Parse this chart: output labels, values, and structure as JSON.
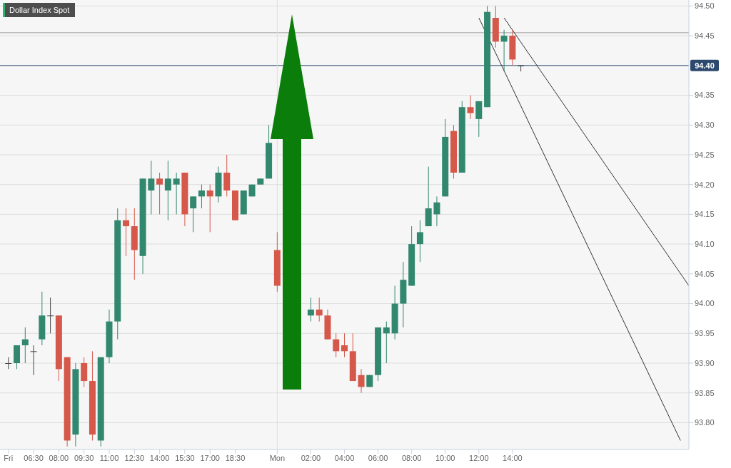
{
  "chart_data": {
    "type": "candlestick",
    "title": "Dollar Index Spot",
    "categories": [
      "Fri",
      null,
      null,
      "06:30",
      null,
      null,
      "08:00",
      null,
      null,
      "09:30",
      null,
      null,
      "11:00",
      null,
      null,
      "12:30",
      null,
      null,
      "14:00",
      null,
      null,
      "15:30",
      null,
      null,
      "17:00",
      null,
      null,
      "18:30",
      null,
      null,
      null,
      null,
      "Mon",
      null,
      null,
      null,
      "02:00",
      null,
      null,
      null,
      "04:00",
      null,
      null,
      null,
      "06:00",
      null,
      null,
      null,
      "08:00",
      null,
      null,
      null,
      "10:00",
      null,
      null,
      null,
      "12:00",
      null,
      null,
      null,
      "14:00",
      null,
      null,
      null,
      null,
      null,
      null,
      null,
      null,
      null,
      null,
      null,
      null,
      null,
      null,
      null,
      null,
      null,
      null,
      null,
      null,
      null
    ],
    "ohlc": [
      [
        93.9,
        93.91,
        93.89,
        93.9
      ],
      [
        93.9,
        93.93,
        93.89,
        93.93
      ],
      [
        93.93,
        93.96,
        93.9,
        93.94
      ],
      [
        93.92,
        93.93,
        93.88,
        93.92
      ],
      [
        93.94,
        94.02,
        93.93,
        93.98
      ],
      [
        93.98,
        94.01,
        93.95,
        93.98
      ],
      [
        93.98,
        93.98,
        93.87,
        93.89
      ],
      [
        93.91,
        93.91,
        93.76,
        93.77
      ],
      [
        93.78,
        93.9,
        93.76,
        93.89
      ],
      [
        93.9,
        93.91,
        93.86,
        93.87
      ],
      [
        93.87,
        93.92,
        93.77,
        93.78
      ],
      [
        93.77,
        93.91,
        93.76,
        93.91
      ],
      [
        93.91,
        93.99,
        93.9,
        93.97
      ],
      [
        93.97,
        94.16,
        93.94,
        94.14
      ],
      [
        94.14,
        94.16,
        94.08,
        94.13
      ],
      [
        94.13,
        94.16,
        94.04,
        94.09
      ],
      [
        94.08,
        94.21,
        94.05,
        94.21
      ],
      [
        94.19,
        94.24,
        94.15,
        94.21
      ],
      [
        94.21,
        94.22,
        94.15,
        94.2
      ],
      [
        94.19,
        94.24,
        94.14,
        94.21
      ],
      [
        94.2,
        94.22,
        94.15,
        94.21
      ],
      [
        94.22,
        94.22,
        94.13,
        94.15
      ],
      [
        94.16,
        94.18,
        94.12,
        94.18
      ],
      [
        94.18,
        94.2,
        94.16,
        94.19
      ],
      [
        94.19,
        94.2,
        94.12,
        94.18
      ],
      [
        94.18,
        94.23,
        94.17,
        94.22
      ],
      [
        94.22,
        94.25,
        94.18,
        94.19
      ],
      [
        94.19,
        94.19,
        94.14,
        94.14
      ],
      [
        94.15,
        94.19,
        94.15,
        94.19
      ],
      [
        94.18,
        94.2,
        94.18,
        94.2
      ],
      [
        94.2,
        94.21,
        94.2,
        94.21
      ],
      [
        94.21,
        94.3,
        94.21,
        94.27
      ],
      [
        94.09,
        94.12,
        94.02,
        94.03
      ],
      null,
      null,
      null,
      [
        93.98,
        94.01,
        93.97,
        93.99
      ],
      [
        93.99,
        94.01,
        93.97,
        93.98
      ],
      [
        93.98,
        93.99,
        93.94,
        93.94
      ],
      [
        93.94,
        93.95,
        93.91,
        93.92
      ],
      [
        93.93,
        93.95,
        93.91,
        93.92
      ],
      [
        93.92,
        93.95,
        93.87,
        93.87
      ],
      [
        93.88,
        93.89,
        93.85,
        93.86
      ],
      [
        93.86,
        93.88,
        93.86,
        93.88
      ],
      [
        93.88,
        93.96,
        93.87,
        93.96
      ],
      [
        93.95,
        93.97,
        93.9,
        93.96
      ],
      [
        93.95,
        94.03,
        93.94,
        94.0
      ],
      [
        94.0,
        94.07,
        93.96,
        94.04
      ],
      [
        94.03,
        94.13,
        94.03,
        94.1
      ],
      [
        94.1,
        94.14,
        94.07,
        94.12
      ],
      [
        94.13,
        94.23,
        94.13,
        94.16
      ],
      [
        94.15,
        94.18,
        94.13,
        94.17
      ],
      [
        94.18,
        94.31,
        94.18,
        94.28
      ],
      [
        94.29,
        94.3,
        94.21,
        94.22
      ],
      [
        94.22,
        94.34,
        94.22,
        94.33
      ],
      [
        94.33,
        94.35,
        94.31,
        94.32
      ],
      [
        94.31,
        94.34,
        94.28,
        94.34
      ],
      [
        94.33,
        94.5,
        94.33,
        94.49
      ],
      [
        94.48,
        94.5,
        94.43,
        94.44
      ],
      [
        94.44,
        94.46,
        94.39,
        94.45
      ],
      [
        94.45,
        94.46,
        94.4,
        94.41
      ],
      [
        94.4,
        94.4,
        94.39,
        94.4
      ],
      null,
      null,
      null,
      null,
      null,
      null,
      null,
      null,
      null,
      null,
      null,
      null,
      null,
      null,
      null,
      null,
      null,
      null,
      null,
      null
    ],
    "colors": [
      "#444444",
      "#32876f",
      "#32876f",
      "#444444",
      "#32876f",
      "#444444",
      "#d5584a",
      "#d5584a",
      "#32876f",
      "#d5584a",
      "#d5584a",
      "#32876f",
      "#32876f",
      "#32876f",
      "#d5584a",
      "#d5584a",
      "#32876f",
      "#32876f",
      "#d5584a",
      "#32876f",
      "#32876f",
      "#d5584a",
      "#32876f",
      "#32876f",
      "#d5584a",
      "#32876f",
      "#d5584a",
      "#d5584a",
      "#32876f",
      "#32876f",
      "#32876f",
      "#32876f",
      "#d5584a",
      null,
      null,
      null,
      "#32876f",
      "#d5584a",
      "#d5584a",
      "#d5584a",
      "#d5584a",
      "#d5584a",
      "#d5584a",
      "#32876f",
      "#32876f",
      "#32876f",
      "#32876f",
      "#32876f",
      "#32876f",
      "#32876f",
      "#32876f",
      "#32876f",
      "#32876f",
      "#d5584a",
      "#32876f",
      "#d5584a",
      "#32876f",
      "#32876f",
      "#d5584a",
      "#32876f",
      "#d5584a",
      "#444444",
      null,
      null,
      null,
      null,
      null,
      null,
      null,
      null,
      null,
      null,
      null,
      null,
      null,
      null,
      null,
      null,
      null,
      null,
      null,
      null
    ],
    "series": [
      {
        "type": "line",
        "color": "#333333",
        "values": [
          null,
          null,
          null,
          null,
          null,
          null,
          null,
          null,
          null,
          null,
          null,
          null,
          null,
          null,
          null,
          null,
          null,
          null,
          null,
          null,
          null,
          null,
          null,
          null,
          null,
          null,
          null,
          null,
          null,
          null,
          null,
          null,
          null,
          null,
          null,
          null,
          null,
          null,
          null,
          null,
          null,
          null,
          null,
          null,
          null,
          null,
          null,
          null,
          null,
          null,
          null,
          null,
          null,
          null,
          null,
          null,
          94.48,
          null,
          null,
          null,
          null,
          null,
          null,
          null,
          null,
          null,
          null,
          null,
          null,
          null,
          null,
          null,
          null,
          null,
          null,
          null,
          null,
          null,
          null,
          null,
          93.77,
          null
        ]
      },
      {
        "type": "line",
        "color": "#333333",
        "values": [
          null,
          null,
          null,
          null,
          null,
          null,
          null,
          null,
          null,
          null,
          null,
          null,
          null,
          null,
          null,
          null,
          null,
          null,
          null,
          null,
          null,
          null,
          null,
          null,
          null,
          null,
          null,
          null,
          null,
          null,
          null,
          null,
          null,
          null,
          null,
          null,
          null,
          null,
          null,
          null,
          null,
          null,
          null,
          null,
          null,
          null,
          null,
          null,
          null,
          null,
          null,
          null,
          null,
          null,
          null,
          null,
          null,
          null,
          null,
          94.48,
          null,
          null,
          null,
          null,
          null,
          null,
          null,
          null,
          null,
          null,
          null,
          null,
          null,
          null,
          null,
          null,
          null,
          null,
          null,
          null,
          null,
          94.03
        ]
      }
    ],
    "ylim": [
      93.755,
      94.51
    ],
    "yticks": [
      {
        "value": 93.8,
        "label": "93.80"
      },
      {
        "value": 93.85,
        "label": "93.85"
      },
      {
        "value": 93.9,
        "label": "93.90"
      },
      {
        "value": 93.95,
        "label": "93.95"
      },
      {
        "value": 94.0,
        "label": "94.00"
      },
      {
        "value": 94.05,
        "label": "94.05"
      },
      {
        "value": 94.1,
        "label": "94.10"
      },
      {
        "value": 94.15,
        "label": "94.15"
      },
      {
        "value": 94.2,
        "label": "94.20"
      },
      {
        "value": 94.25,
        "label": "94.25"
      },
      {
        "value": 94.3,
        "label": "94.30"
      },
      {
        "value": 94.35,
        "label": "94.35"
      },
      {
        "value": 94.45,
        "label": "94.45"
      },
      {
        "value": 94.5,
        "label": "94.50"
      }
    ],
    "ref_lines": [
      {
        "axis": "y",
        "value": 94.455,
        "color": "#999999"
      },
      {
        "axis": "y",
        "value": 94.4,
        "label": "94.40",
        "color": "#2c4a6e"
      },
      {
        "axis": "x",
        "value": "Mon",
        "color": "#dddddd"
      }
    ],
    "grid": "y"
  }
}
